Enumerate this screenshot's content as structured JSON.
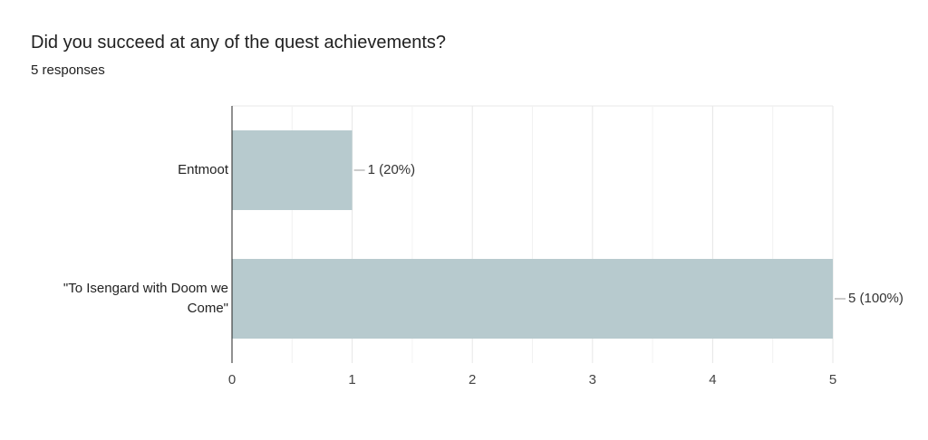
{
  "chart_data": {
    "type": "bar",
    "orientation": "horizontal",
    "title": "Did you succeed at any of the quest achievements?",
    "subtitle": "5 responses",
    "categories": [
      "Entmoot",
      "\"To Isengard with Doom we Come\""
    ],
    "values": [
      1,
      5
    ],
    "value_labels": [
      "1 (20%)",
      "5 (100%)"
    ],
    "color": "#b7cace",
    "xlim": [
      0,
      5
    ],
    "xticks": [
      0,
      1,
      2,
      3,
      4,
      5
    ],
    "grid": true
  }
}
